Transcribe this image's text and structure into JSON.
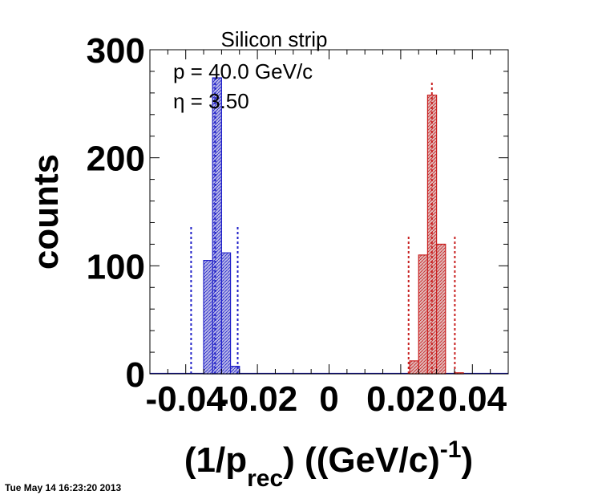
{
  "chart_data": {
    "type": "bar",
    "title": "Silicon strip",
    "annotations": [
      "p = 40.0 GeV/c",
      "η = 3.50"
    ],
    "xlabel_main": "(1/p",
    "xlabel_sub": "rec",
    "xlabel_tail": ") ((GeV/c)",
    "xlabel_sup": "-1",
    "xlabel_end": ")",
    "ylabel": "counts",
    "xlim": [
      -0.05,
      0.05
    ],
    "ylim": [
      0,
      300
    ],
    "xticks": [
      -0.04,
      -0.02,
      0,
      0.02,
      0.04
    ],
    "xtick_labels": [
      "-0.04",
      "-0.02",
      "0",
      "0.02",
      "0.04"
    ],
    "yticks": [
      0,
      100,
      200,
      300
    ],
    "ytick_labels": [
      "0",
      "100",
      "200",
      "300"
    ],
    "grid": false,
    "bin_width": 0.0025,
    "series": [
      {
        "color": "#2020c8",
        "fill": "#8c8cc8",
        "bins": [
          {
            "x0": -0.0375,
            "y": 0
          },
          {
            "x0": -0.035,
            "y": 105
          },
          {
            "x0": -0.0325,
            "y": 274
          },
          {
            "x0": -0.03,
            "y": 112
          },
          {
            "x0": -0.0275,
            "y": 7
          }
        ],
        "mean": -0.0318,
        "mean_line_top": 274,
        "limits": [
          -0.0385,
          -0.0255
        ],
        "limit_line_top": 137
      },
      {
        "color": "#c82020",
        "fill": "#c88c8c",
        "bins": [
          {
            "x0": 0.0225,
            "y": 12
          },
          {
            "x0": 0.025,
            "y": 110
          },
          {
            "x0": 0.0275,
            "y": 258
          },
          {
            "x0": 0.03,
            "y": 120
          },
          {
            "x0": 0.035,
            "y": 1
          }
        ],
        "mean": 0.0287,
        "mean_line_top": 270,
        "limits": [
          0.0222,
          0.0351
        ],
        "limit_line_top": 128
      }
    ]
  },
  "footer": {
    "timestamp": "Tue May 14 16:23:20 2013"
  }
}
